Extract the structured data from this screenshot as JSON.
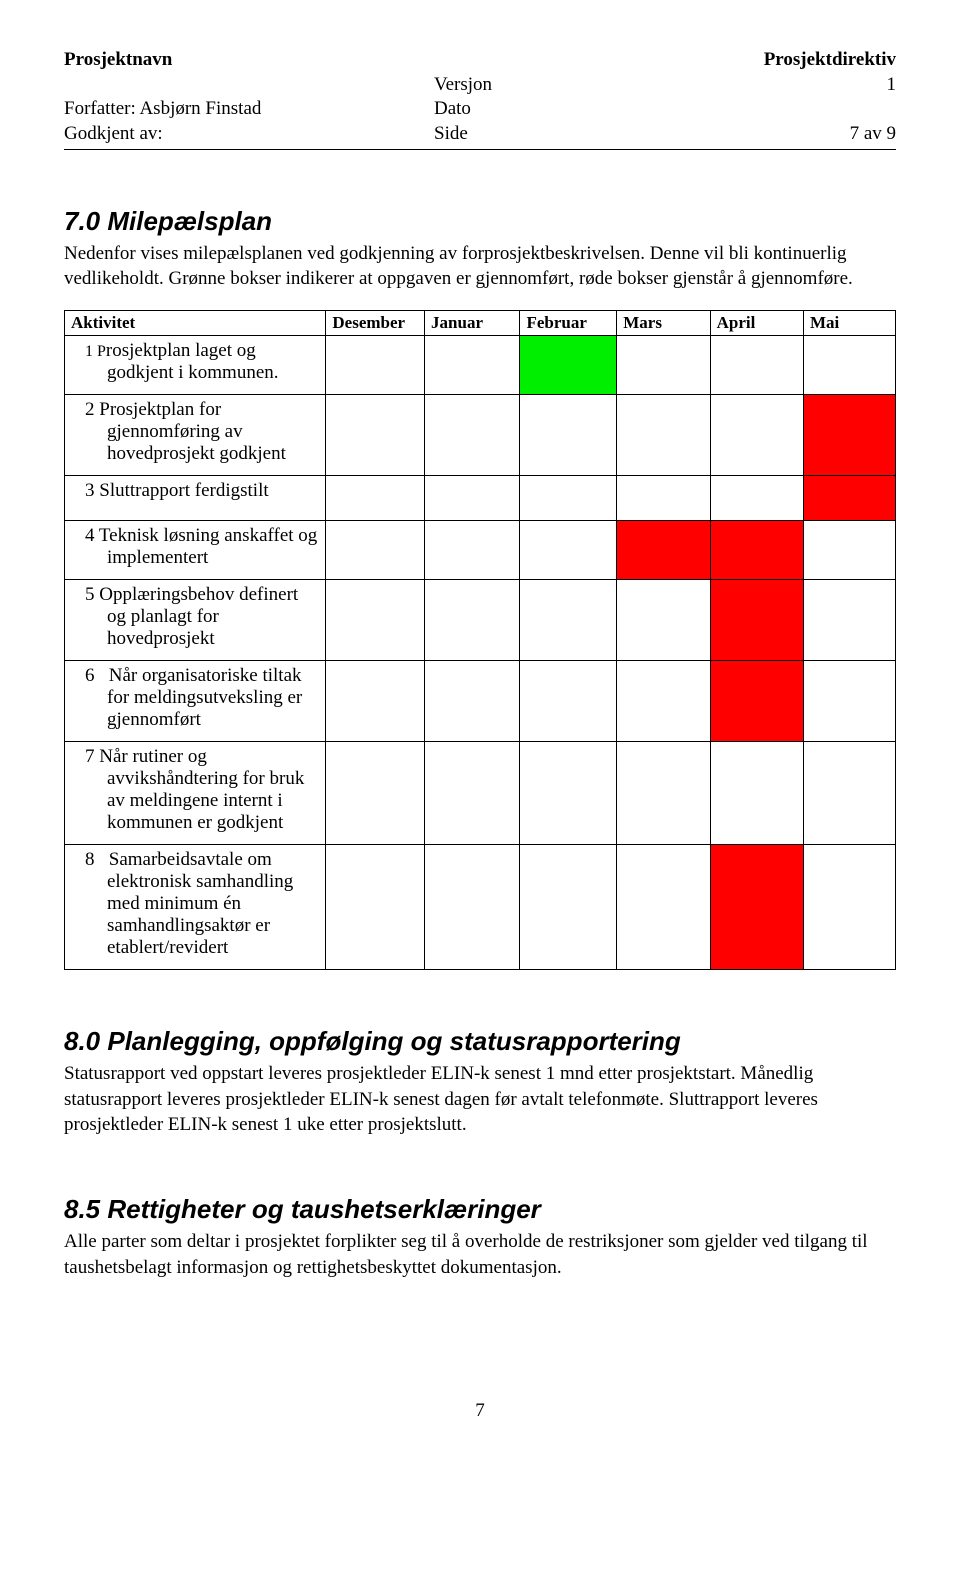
{
  "header": {
    "title_left": "Prosjektnavn",
    "title_right": "Prosjektdirektiv",
    "row1_col2": "Versjon",
    "row1_col3": "1",
    "row2_col1": "Forfatter: Asbjørn Finstad",
    "row2_col2": "Dato",
    "row3_col1": "Godkjent av:",
    "row3_col2": "Side",
    "row3_col3": "7 av 9"
  },
  "section7": {
    "heading": "7.0 Milepælsplan",
    "para": "Nedenfor vises milepælsplanen ved godkjenning av forprosjektbeskrivelsen. Denne vil bli kontinuerlig vedlikeholdt. Grønne bokser indikerer at oppgaven er gjennomført, røde bokser gjenstår å gjennomføre."
  },
  "gantt": {
    "col_activity": "Aktivitet",
    "months": [
      "Desember",
      "Januar",
      "Februar",
      "Mars",
      "April",
      "Mai"
    ],
    "colors": {
      "G": "#00ee00",
      "R": "#ff0000",
      "E": "#ffffff"
    },
    "rows": [
      {
        "label_html": "<span class=\"num-prefix\">1 P</span>rosjektplan laget og godkjent i kommunen.",
        "cells": [
          "E",
          "E",
          "G",
          "E",
          "E",
          "E"
        ]
      },
      {
        "label_html": "2 Prosjektplan for gjennomføring av hovedprosjekt godkjent",
        "cells": [
          "E",
          "E",
          "E",
          "E",
          "E",
          "R"
        ]
      },
      {
        "label_html": "3 Sluttrapport ferdigstilt",
        "cells": [
          "E",
          "E",
          "E",
          "E",
          "E",
          "R"
        ]
      },
      {
        "label_html": "4 Teknisk løsning anskaffet og implementert",
        "cells": [
          "E",
          "E",
          "E",
          "R",
          "R",
          "E"
        ]
      },
      {
        "label_html": "5 Opplæringsbehov definert og planlagt for hovedprosjekt",
        "cells": [
          "E",
          "E",
          "E",
          "E",
          "R",
          "E"
        ]
      },
      {
        "label_html": "6&nbsp;&nbsp;&nbsp;Når organisatoriske tiltak for meldingsutveksling er gjennomført",
        "cells": [
          "E",
          "E",
          "E",
          "E",
          "R",
          "E"
        ]
      },
      {
        "label_html": "7 Når rutiner og avvikshåndtering for bruk av meldingene internt i kommunen er godkjent",
        "cells": [
          "E",
          "E",
          "E",
          "E",
          "E",
          "E"
        ]
      },
      {
        "label_html": "8&nbsp;&nbsp;&nbsp;Samarbeidsavtale om elektronisk samhandling med minimum én samhandlingsaktør er etablert/revidert",
        "cells": [
          "E",
          "E",
          "E",
          "E",
          "R",
          "E"
        ]
      }
    ]
  },
  "section8": {
    "heading": "8.0 Planlegging, oppfølging og statusrapportering",
    "para": "Statusrapport ved oppstart leveres prosjektleder ELIN-k senest 1 mnd etter prosjektstart. Månedlig statusrapport leveres prosjektleder ELIN-k senest dagen før avtalt telefonmøte. Sluttrapport leveres prosjektleder ELIN-k senest 1 uke etter prosjektslutt."
  },
  "section85": {
    "heading": "8.5 Rettigheter og taushetserklæringer",
    "para": "Alle parter som deltar i prosjektet forplikter seg til å overholde de restriksjoner som gjelder ved tilgang til taushetsbelagt informasjon og rettighetsbeskyttet dokumentasjon."
  },
  "footer_page": "7"
}
